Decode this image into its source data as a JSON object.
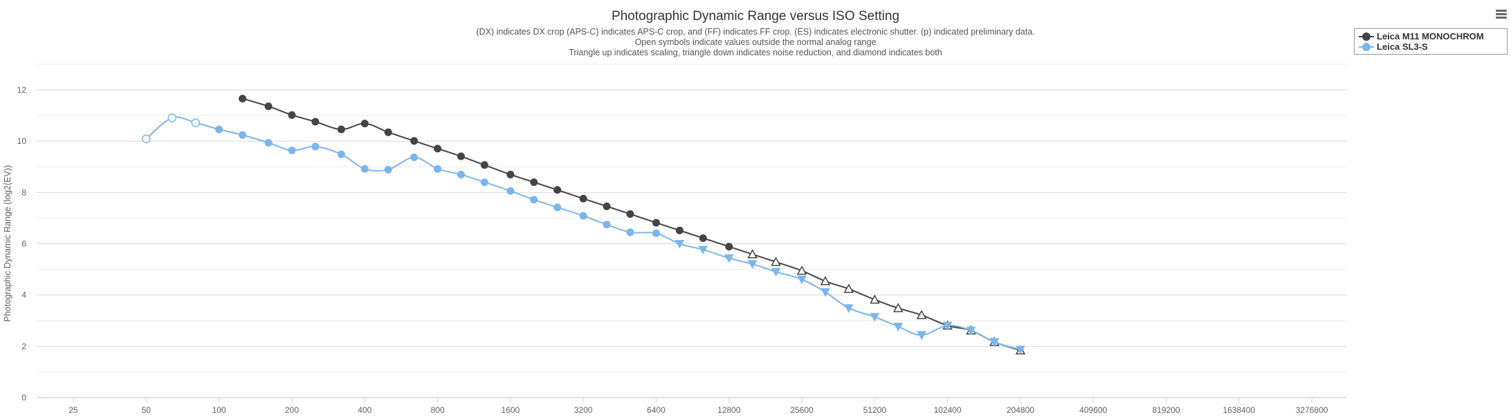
{
  "chart_data": {
    "type": "line",
    "title": "Photographic Dynamic Range versus ISO Setting",
    "subtitles": [
      "(DX) indicates DX crop (APS-C) indicates APS-C crop, and (FF) indicates FF crop. (ES) indicates electronic shutter. (p) indicated preliminary data.",
      "Open symbols indicate values outside the normal analog range",
      "Triangle up indicates scaling, triangle down indicates noise reduction, and diamond indicates both"
    ],
    "xlabel": "",
    "ylabel": "Photographic Dynamic Range (log2(EV))",
    "x_scale": "log2",
    "x_ticks": [
      "25",
      "50",
      "100",
      "200",
      "400",
      "800",
      "1600",
      "3200",
      "6400",
      "12800",
      "25600",
      "51200",
      "102400",
      "204800",
      "409600",
      "819200",
      "1638400",
      "3276800"
    ],
    "y_ticks": [
      0,
      2,
      4,
      6,
      8,
      10,
      12
    ],
    "ylim": [
      0,
      13
    ],
    "grid": true,
    "legend_position": "top-right",
    "series": [
      {
        "name": "Leica M11 MONOCHROM",
        "color": "#434348",
        "points": [
          {
            "iso": 125,
            "v": 11.66,
            "m": "circle"
          },
          {
            "iso": 160,
            "v": 11.36,
            "m": "circle"
          },
          {
            "iso": 200,
            "v": 11.02,
            "m": "circle"
          },
          {
            "iso": 250,
            "v": 10.76,
            "m": "circle"
          },
          {
            "iso": 320,
            "v": 10.46,
            "m": "circle"
          },
          {
            "iso": 400,
            "v": 10.69,
            "m": "circle"
          },
          {
            "iso": 500,
            "v": 10.35,
            "m": "circle"
          },
          {
            "iso": 640,
            "v": 10.01,
            "m": "circle"
          },
          {
            "iso": 800,
            "v": 9.71,
            "m": "circle"
          },
          {
            "iso": 1000,
            "v": 9.41,
            "m": "circle"
          },
          {
            "iso": 1250,
            "v": 9.07,
            "m": "circle"
          },
          {
            "iso": 1600,
            "v": 8.7,
            "m": "circle"
          },
          {
            "iso": 2000,
            "v": 8.4,
            "m": "circle"
          },
          {
            "iso": 2500,
            "v": 8.1,
            "m": "circle"
          },
          {
            "iso": 3200,
            "v": 7.76,
            "m": "circle"
          },
          {
            "iso": 4000,
            "v": 7.46,
            "m": "circle"
          },
          {
            "iso": 5000,
            "v": 7.16,
            "m": "circle"
          },
          {
            "iso": 6400,
            "v": 6.82,
            "m": "circle"
          },
          {
            "iso": 8000,
            "v": 6.52,
            "m": "circle"
          },
          {
            "iso": 10000,
            "v": 6.22,
            "m": "circle"
          },
          {
            "iso": 12800,
            "v": 5.89,
            "m": "circle"
          },
          {
            "iso": 16000,
            "v": 5.59,
            "m": "triangle-up-open"
          },
          {
            "iso": 20000,
            "v": 5.29,
            "m": "triangle-up-open"
          },
          {
            "iso": 25600,
            "v": 4.95,
            "m": "triangle-up-open"
          },
          {
            "iso": 32000,
            "v": 4.54,
            "m": "triangle-up-open"
          },
          {
            "iso": 40000,
            "v": 4.24,
            "m": "triangle-up-open"
          },
          {
            "iso": 51200,
            "v": 3.82,
            "m": "triangle-up-open"
          },
          {
            "iso": 64000,
            "v": 3.49,
            "m": "triangle-up-open"
          },
          {
            "iso": 80000,
            "v": 3.22,
            "m": "triangle-up-open"
          },
          {
            "iso": 102400,
            "v": 2.81,
            "m": "triangle-up-open"
          },
          {
            "iso": 128000,
            "v": 2.62,
            "m": "triangle-up-open"
          },
          {
            "iso": 160000,
            "v": 2.17,
            "m": "triangle-up-open"
          },
          {
            "iso": 204800,
            "v": 1.84,
            "m": "triangle-up-open"
          }
        ]
      },
      {
        "name": "Leica SL3-S",
        "color": "#7cb5ec",
        "points": [
          {
            "iso": 50,
            "v": 10.09,
            "m": "circle-open"
          },
          {
            "iso": 64,
            "v": 10.91,
            "m": "circle-open"
          },
          {
            "iso": 80,
            "v": 10.72,
            "m": "circle-open"
          },
          {
            "iso": 100,
            "v": 10.46,
            "m": "circle"
          },
          {
            "iso": 125,
            "v": 10.24,
            "m": "circle"
          },
          {
            "iso": 160,
            "v": 9.94,
            "m": "circle"
          },
          {
            "iso": 200,
            "v": 9.64,
            "m": "circle"
          },
          {
            "iso": 250,
            "v": 9.79,
            "m": "circle"
          },
          {
            "iso": 320,
            "v": 9.49,
            "m": "circle"
          },
          {
            "iso": 400,
            "v": 8.92,
            "m": "circle"
          },
          {
            "iso": 500,
            "v": 8.89,
            "m": "circle"
          },
          {
            "iso": 640,
            "v": 9.37,
            "m": "circle"
          },
          {
            "iso": 800,
            "v": 8.92,
            "m": "circle"
          },
          {
            "iso": 1000,
            "v": 8.7,
            "m": "circle"
          },
          {
            "iso": 1250,
            "v": 8.4,
            "m": "circle"
          },
          {
            "iso": 1600,
            "v": 8.06,
            "m": "circle"
          },
          {
            "iso": 2000,
            "v": 7.72,
            "m": "circle"
          },
          {
            "iso": 2500,
            "v": 7.42,
            "m": "circle"
          },
          {
            "iso": 3200,
            "v": 7.09,
            "m": "circle"
          },
          {
            "iso": 4000,
            "v": 6.75,
            "m": "circle"
          },
          {
            "iso": 5000,
            "v": 6.45,
            "m": "circle"
          },
          {
            "iso": 6400,
            "v": 6.41,
            "m": "circle"
          },
          {
            "iso": 8000,
            "v": 6.0,
            "m": "triangle-down"
          },
          {
            "iso": 10000,
            "v": 5.77,
            "m": "triangle-down"
          },
          {
            "iso": 12800,
            "v": 5.44,
            "m": "triangle-down"
          },
          {
            "iso": 16000,
            "v": 5.21,
            "m": "triangle-down"
          },
          {
            "iso": 20000,
            "v": 4.91,
            "m": "triangle-down"
          },
          {
            "iso": 25600,
            "v": 4.61,
            "m": "triangle-down"
          },
          {
            "iso": 32000,
            "v": 4.12,
            "m": "triangle-down"
          },
          {
            "iso": 40000,
            "v": 3.49,
            "m": "triangle-down"
          },
          {
            "iso": 51200,
            "v": 3.15,
            "m": "triangle-down"
          },
          {
            "iso": 64000,
            "v": 2.77,
            "m": "triangle-down"
          },
          {
            "iso": 80000,
            "v": 2.44,
            "m": "triangle-down"
          },
          {
            "iso": 102400,
            "v": 2.81,
            "m": "triangle-down"
          },
          {
            "iso": 128000,
            "v": 2.62,
            "m": "triangle-down"
          },
          {
            "iso": 160000,
            "v": 2.17,
            "m": "triangle-down"
          },
          {
            "iso": 204800,
            "v": 1.87,
            "m": "triangle-down"
          }
        ]
      }
    ]
  }
}
